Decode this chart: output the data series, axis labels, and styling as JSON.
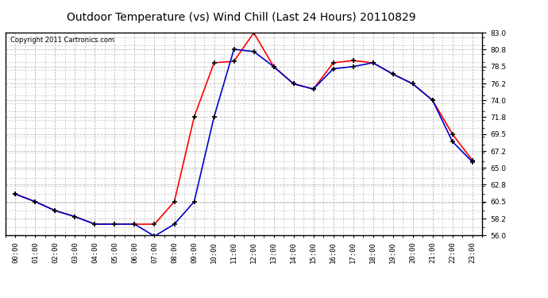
{
  "title": "Outdoor Temperature (vs) Wind Chill (Last 24 Hours) 20110829",
  "copyright": "Copyright 2011 Cartronics.com",
  "x_labels": [
    "00:00",
    "01:00",
    "02:00",
    "03:00",
    "04:00",
    "05:00",
    "06:00",
    "07:00",
    "08:00",
    "09:00",
    "10:00",
    "11:00",
    "12:00",
    "13:00",
    "14:00",
    "15:00",
    "16:00",
    "17:00",
    "18:00",
    "19:00",
    "20:00",
    "21:00",
    "22:00",
    "23:00"
  ],
  "temp_red": [
    61.5,
    60.5,
    59.3,
    58.5,
    57.5,
    57.5,
    57.5,
    57.5,
    60.5,
    71.8,
    79.0,
    79.2,
    83.0,
    78.5,
    76.2,
    75.5,
    79.0,
    79.3,
    79.0,
    77.5,
    76.2,
    74.0,
    69.5,
    66.0
  ],
  "wind_chill_blue": [
    61.5,
    60.5,
    59.3,
    58.5,
    57.5,
    57.5,
    57.5,
    55.9,
    57.5,
    60.5,
    71.8,
    80.8,
    80.5,
    78.5,
    76.2,
    75.5,
    78.2,
    78.5,
    79.0,
    77.5,
    76.2,
    74.0,
    68.5,
    65.8
  ],
  "ylim": [
    56.0,
    83.0
  ],
  "yticks": [
    56.0,
    58.2,
    60.5,
    62.8,
    65.0,
    67.2,
    69.5,
    71.8,
    74.0,
    76.2,
    78.5,
    80.8,
    83.0
  ],
  "line_color_red": "#ff0000",
  "line_color_blue": "#0000cc",
  "marker_color": "#000000",
  "bg_color": "#ffffff",
  "plot_bg_color": "#ffffff",
  "grid_color": "#bbbbbb",
  "title_fontsize": 10,
  "copyright_fontsize": 6,
  "tick_fontsize": 6.5,
  "figsize": [
    6.9,
    3.75
  ],
  "dpi": 100
}
